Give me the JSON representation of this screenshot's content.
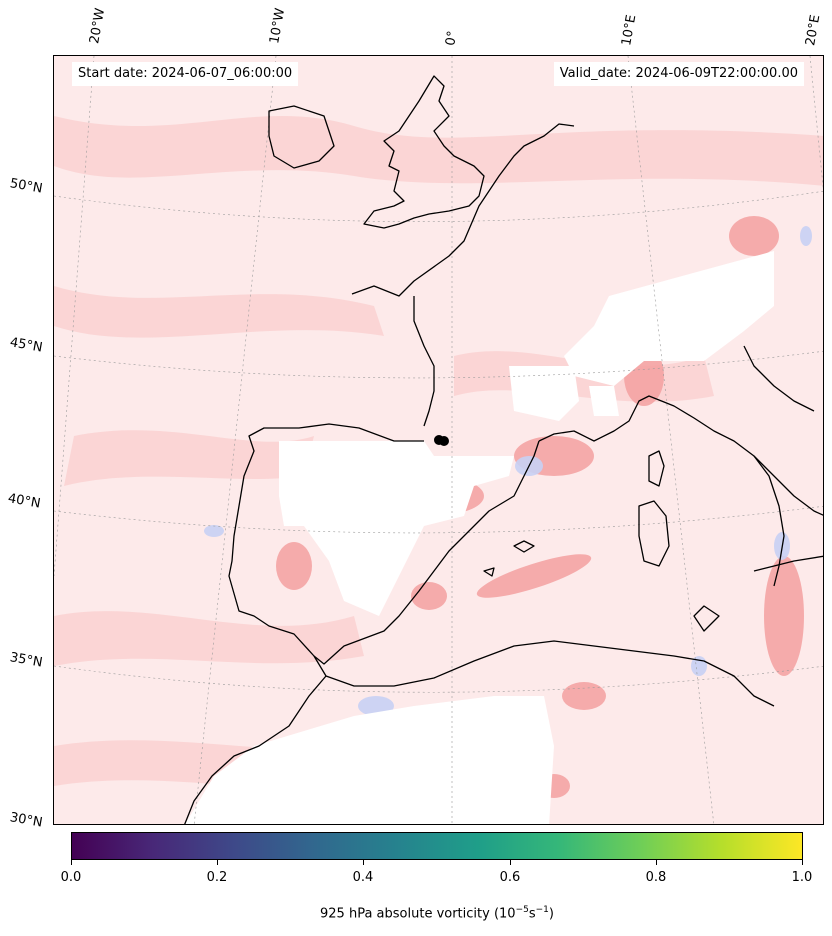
{
  "header": {
    "start_date": "Start date: 2024-06-07_06:00:00",
    "valid_date": "Valid_date: 2024-06-09T22:00:00.00"
  },
  "longitude_labels": [
    "20°W",
    "10°W",
    "0°",
    "10°E",
    "20°E"
  ],
  "latitude_labels": [
    "50°N",
    "45°N",
    "40°N",
    "35°N",
    "30°N"
  ],
  "colorbar": {
    "title_prefix": "925 hPa absolute vorticity (10",
    "title_exp1": "−5",
    "title_mid": "s",
    "title_exp2": "−1",
    "title_suffix": ")",
    "ticks": [
      "0.0",
      "0.2",
      "0.4",
      "0.6",
      "0.8",
      "1.0"
    ],
    "colormap": "viridis",
    "range": [
      0.0,
      1.0
    ]
  },
  "colors": {
    "positive_vorticity": "#f4a0a0",
    "negative_vorticity": "#c8d0f4",
    "background_field": "#fdeaea",
    "coastline": "#000000"
  },
  "marker": {
    "icon": "track-point-marker"
  }
}
